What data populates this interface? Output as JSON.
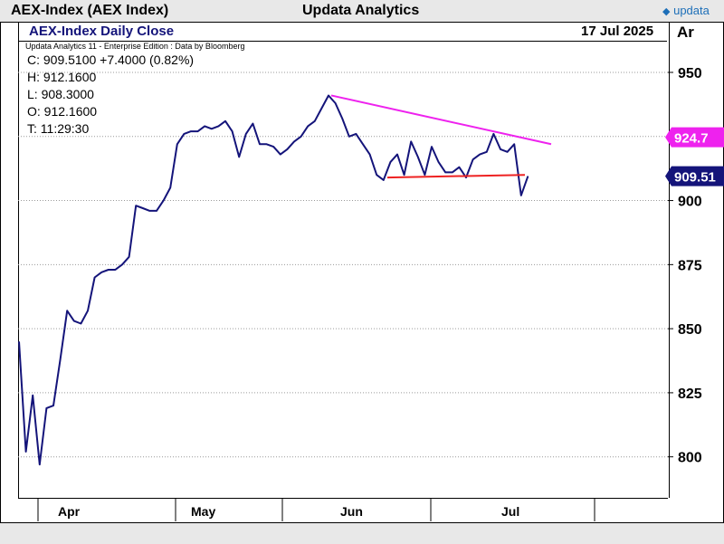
{
  "header": {
    "instrument": "AEX-Index (AEX Index)",
    "vendor": "Updata Analytics",
    "logo_text": "updata"
  },
  "subheader": {
    "chart_title": "AEX-Index Daily Close",
    "date": "17 Jul 2025",
    "axis_code": "Ar",
    "edition": "Updata Analytics 11 - Enterprise Edition : Data by Bloomberg"
  },
  "ohlc": {
    "close": "C: 909.5100  +7.4000 (0.82%)",
    "high": "H: 912.1600",
    "low": "L: 908.3000",
    "open": "O: 912.1600",
    "time": "T: 11:29:30"
  },
  "colors": {
    "price_line": "#14147a",
    "upper_trendline": "#ee22ee",
    "lower_trendline": "#ee2222",
    "grid": "#9a9a9a",
    "tag_last": "#14147a",
    "tag_trend": "#ee22ee"
  },
  "chart_data": {
    "type": "line",
    "title": "AEX-Index Daily Close",
    "xlabel": "",
    "ylabel": "",
    "ylim": [
      784,
      962
    ],
    "yticks": [
      800,
      825,
      850,
      875,
      900,
      925,
      950
    ],
    "grid": true,
    "x_tick_labels": [
      "Apr",
      "May",
      "Jun",
      "Jul"
    ],
    "series": [
      {
        "values": [
          845,
          802,
          824,
          797,
          819,
          820,
          838,
          857,
          853,
          852,
          857,
          870,
          872,
          873,
          873,
          875,
          878,
          898,
          897,
          896,
          896,
          900,
          905,
          922,
          926,
          927,
          927,
          929,
          928,
          929,
          931,
          927,
          917,
          926,
          930,
          922,
          922,
          921,
          918,
          920,
          923,
          925,
          929,
          931,
          936,
          941,
          938,
          932,
          925,
          926,
          922,
          918,
          910,
          908,
          915,
          918,
          910,
          923,
          917,
          910,
          921,
          915,
          911,
          911,
          913,
          909,
          916,
          918,
          919,
          926,
          920,
          919,
          922,
          902,
          909.51
        ]
      }
    ],
    "trendlines": [
      {
        "from": 941,
        "to": 922
      },
      {
        "from": 909,
        "to": 910
      }
    ],
    "price_tags": [
      {
        "label": "924.7",
        "value": 924.7
      },
      {
        "label": "909.51",
        "value": 909.51
      }
    ]
  }
}
